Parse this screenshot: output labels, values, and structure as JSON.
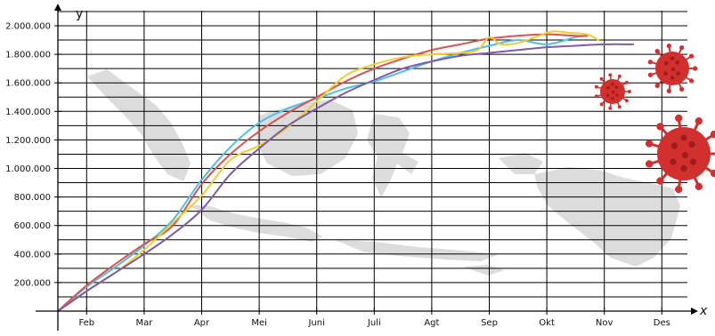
{
  "chart_data": {
    "type": "line",
    "title": "",
    "xlabel": "x",
    "ylabel": "y",
    "categories": [
      "Feb",
      "Mar",
      "Apr",
      "Mei",
      "Juni",
      "Juli",
      "Agt",
      "Sep",
      "Okt",
      "Nov",
      "Des"
    ],
    "y_tick_labels": [
      "200.000",
      "400.000",
      "600.000",
      "800.000",
      "1.000.000",
      "1.200.000",
      "1.400.000",
      "1.600.000",
      "1.800.000",
      "2.000.000"
    ],
    "y_ticks": [
      200000,
      400000,
      600000,
      800000,
      1000000,
      1200000,
      1400000,
      1600000,
      1800000,
      2000000
    ],
    "x_range": [
      0,
      11.5
    ],
    "ylim": [
      0,
      2100000
    ],
    "grid": true,
    "legend": "none",
    "series": [
      {
        "color": "#4fbfe6",
        "x": [
          0,
          0.5,
          1.0,
          1.5,
          2.0,
          2.5,
          3.0,
          3.5,
          4.0,
          4.5,
          5.0,
          5.5,
          6.0,
          6.5,
          7.0,
          7.5,
          8.0,
          8.5,
          9.0,
          9.2
        ],
        "y": [
          0,
          170000,
          310000,
          460000,
          640000,
          920000,
          1150000,
          1320000,
          1420000,
          1490000,
          1560000,
          1610000,
          1680000,
          1750000,
          1810000,
          1860000,
          1900000,
          1870000,
          1920000,
          1930000
        ]
      },
      {
        "color": "#d9534f",
        "x": [
          0,
          0.5,
          1.0,
          1.5,
          2.0,
          2.5,
          3.0,
          3.5,
          4.0,
          4.5,
          5.0,
          5.5,
          6.0,
          6.5,
          7.0,
          7.5,
          8.0,
          8.5,
          9.0,
          9.2
        ],
        "y": [
          0,
          180000,
          330000,
          470000,
          600000,
          890000,
          1100000,
          1260000,
          1390000,
          1500000,
          1610000,
          1700000,
          1770000,
          1830000,
          1870000,
          1910000,
          1930000,
          1940000,
          1930000,
          1930000
        ]
      },
      {
        "color": "#f5cc2a",
        "x": [
          0,
          0.5,
          1.0,
          1.5,
          2.0,
          2.5,
          3.0,
          3.5,
          4.0,
          4.5,
          5.0,
          5.5,
          6.0,
          6.5,
          7.0,
          7.3,
          7.5,
          7.7,
          8.0,
          8.3,
          8.6,
          8.9,
          9.2,
          9.4
        ],
        "y": [
          0,
          140000,
          270000,
          430000,
          620000,
          810000,
          1060000,
          1160000,
          1290000,
          1470000,
          1650000,
          1730000,
          1780000,
          1800000,
          1810000,
          1830000,
          1920000,
          1870000,
          1880000,
          1920000,
          1960000,
          1950000,
          1940000,
          1900000
        ]
      },
      {
        "color": "#7d5ba6",
        "x": [
          0,
          0.5,
          1.0,
          1.5,
          2.0,
          2.5,
          3.0,
          3.5,
          4.0,
          4.5,
          5.0,
          5.5,
          6.0,
          6.5,
          7.0,
          7.5,
          8.0,
          8.5,
          9.0,
          9.5,
          10.0
        ],
        "y": [
          0,
          140000,
          270000,
          400000,
          540000,
          710000,
          960000,
          1140000,
          1300000,
          1420000,
          1530000,
          1620000,
          1700000,
          1750000,
          1790000,
          1810000,
          1830000,
          1850000,
          1860000,
          1870000,
          1870000
        ]
      }
    ]
  },
  "decorations": {
    "map_color": "#dcdcdc",
    "virus_color": "#d22f2f",
    "virus_dark": "#9d1d1d"
  }
}
